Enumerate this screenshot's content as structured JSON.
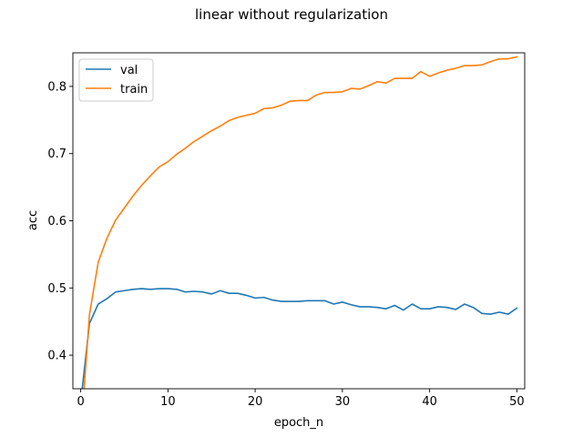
{
  "chart_data": {
    "type": "line",
    "title": "linear without regularization",
    "xlabel": "epoch_n",
    "ylabel": "acc",
    "xlim": [
      -0.9,
      50.9
    ],
    "ylim": [
      0.35,
      0.85
    ],
    "xticks": [
      0,
      10,
      20,
      30,
      40,
      50
    ],
    "yticks": [
      0.4,
      0.5,
      0.6,
      0.7,
      0.8
    ],
    "grid": false,
    "legend_position": "upper-left",
    "x": [
      0,
      1,
      2,
      3,
      4,
      5,
      6,
      7,
      8,
      9,
      10,
      11,
      12,
      13,
      14,
      15,
      16,
      17,
      18,
      19,
      20,
      21,
      22,
      23,
      24,
      25,
      26,
      27,
      28,
      29,
      30,
      31,
      32,
      33,
      34,
      35,
      36,
      37,
      38,
      39,
      40,
      41,
      42,
      43,
      44,
      45,
      46,
      47,
      48,
      49,
      50
    ],
    "series": [
      {
        "name": "val",
        "color": "#1f77b4",
        "values": [
          0.33,
          0.447,
          0.476,
          0.484,
          0.494,
          0.496,
          0.498,
          0.499,
          0.498,
          0.499,
          0.499,
          0.498,
          0.494,
          0.495,
          0.494,
          0.491,
          0.496,
          0.492,
          0.492,
          0.489,
          0.485,
          0.486,
          0.482,
          0.48,
          0.48,
          0.48,
          0.481,
          0.481,
          0.481,
          0.476,
          0.479,
          0.475,
          0.472,
          0.472,
          0.471,
          0.469,
          0.474,
          0.467,
          0.476,
          0.469,
          0.469,
          0.472,
          0.471,
          0.468,
          0.476,
          0.471,
          0.462,
          0.461,
          0.464,
          0.461,
          0.47
        ]
      },
      {
        "name": "train",
        "color": "#ff7f0e",
        "values": [
          0.28,
          0.46,
          0.538,
          0.574,
          0.601,
          0.619,
          0.637,
          0.653,
          0.667,
          0.68,
          0.688,
          0.699,
          0.708,
          0.718,
          0.726,
          0.734,
          0.741,
          0.749,
          0.754,
          0.757,
          0.76,
          0.767,
          0.768,
          0.772,
          0.778,
          0.779,
          0.779,
          0.787,
          0.791,
          0.791,
          0.792,
          0.797,
          0.796,
          0.801,
          0.807,
          0.805,
          0.812,
          0.812,
          0.812,
          0.822,
          0.815,
          0.82,
          0.824,
          0.827,
          0.831,
          0.831,
          0.832,
          0.837,
          0.841,
          0.841,
          0.844
        ]
      }
    ]
  }
}
